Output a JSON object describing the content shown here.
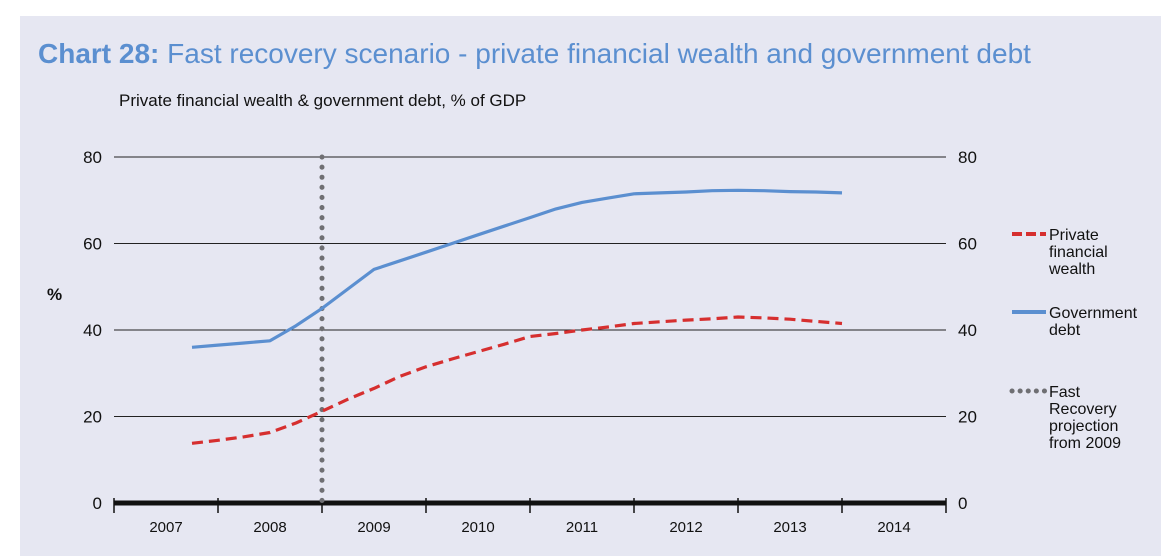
{
  "title": {
    "number": "Chart 28:",
    "text": "Fast recovery scenario - private financial wealth and government debt"
  },
  "subtitle": "Private financial wealth & government debt, % of GDP",
  "chart_data": {
    "type": "line",
    "categories": [
      "2007",
      "2008",
      "2009",
      "2010",
      "2011",
      "2012",
      "2013",
      "2014"
    ],
    "ylabel": "%",
    "ylim": [
      0,
      80
    ],
    "yticks": [
      0,
      20,
      40,
      60,
      80
    ],
    "grid": true,
    "legend_position": "right",
    "projection_marker": {
      "x": 2009,
      "label": "Fast Recovery projection from 2009",
      "label_lines": [
        "Fast",
        "Recovery",
        "projection",
        "from 2009"
      ]
    },
    "series": [
      {
        "name": "Private financial wealth",
        "label_lines": [
          "Private",
          "financial",
          "wealth"
        ],
        "color": "#d62f2f",
        "style": "dashed",
        "points": [
          [
            2007.25,
            13.8
          ],
          [
            2007.5,
            14.5
          ],
          [
            2007.75,
            15.3
          ],
          [
            2008.0,
            16.3
          ],
          [
            2008.25,
            18.5
          ],
          [
            2008.5,
            21.2
          ],
          [
            2008.75,
            24.0
          ],
          [
            2009.0,
            26.5
          ],
          [
            2009.25,
            29.3
          ],
          [
            2009.5,
            31.5
          ],
          [
            2009.75,
            33.3
          ],
          [
            2010.0,
            35.0
          ],
          [
            2010.25,
            36.7
          ],
          [
            2010.5,
            38.5
          ],
          [
            2010.75,
            39.2
          ],
          [
            2011.0,
            40.0
          ],
          [
            2011.25,
            40.7
          ],
          [
            2011.5,
            41.5
          ],
          [
            2011.75,
            41.9
          ],
          [
            2012.0,
            42.3
          ],
          [
            2012.25,
            42.6
          ],
          [
            2012.5,
            43.0
          ],
          [
            2012.75,
            42.8
          ],
          [
            2013.0,
            42.5
          ],
          [
            2013.25,
            42.0
          ],
          [
            2013.5,
            41.5
          ]
        ]
      },
      {
        "name": "Government debt",
        "label_lines": [
          "Government",
          "debt"
        ],
        "color": "#5b8fd0",
        "style": "solid",
        "points": [
          [
            2007.25,
            36.0
          ],
          [
            2007.5,
            36.5
          ],
          [
            2007.75,
            37.0
          ],
          [
            2008.0,
            37.5
          ],
          [
            2008.25,
            41.0
          ],
          [
            2008.5,
            45.0
          ],
          [
            2008.75,
            49.5
          ],
          [
            2009.0,
            54.0
          ],
          [
            2009.25,
            56.0
          ],
          [
            2009.5,
            58.0
          ],
          [
            2009.75,
            60.0
          ],
          [
            2010.0,
            62.0
          ],
          [
            2010.25,
            64.0
          ],
          [
            2010.5,
            66.0
          ],
          [
            2010.75,
            68.0
          ],
          [
            2011.0,
            69.5
          ],
          [
            2011.25,
            70.5
          ],
          [
            2011.5,
            71.5
          ],
          [
            2011.75,
            71.7
          ],
          [
            2012.0,
            71.9
          ],
          [
            2012.25,
            72.2
          ],
          [
            2012.5,
            72.3
          ],
          [
            2012.75,
            72.2
          ],
          [
            2013.0,
            72.0
          ],
          [
            2013.25,
            71.9
          ],
          [
            2013.5,
            71.7
          ]
        ]
      }
    ]
  }
}
